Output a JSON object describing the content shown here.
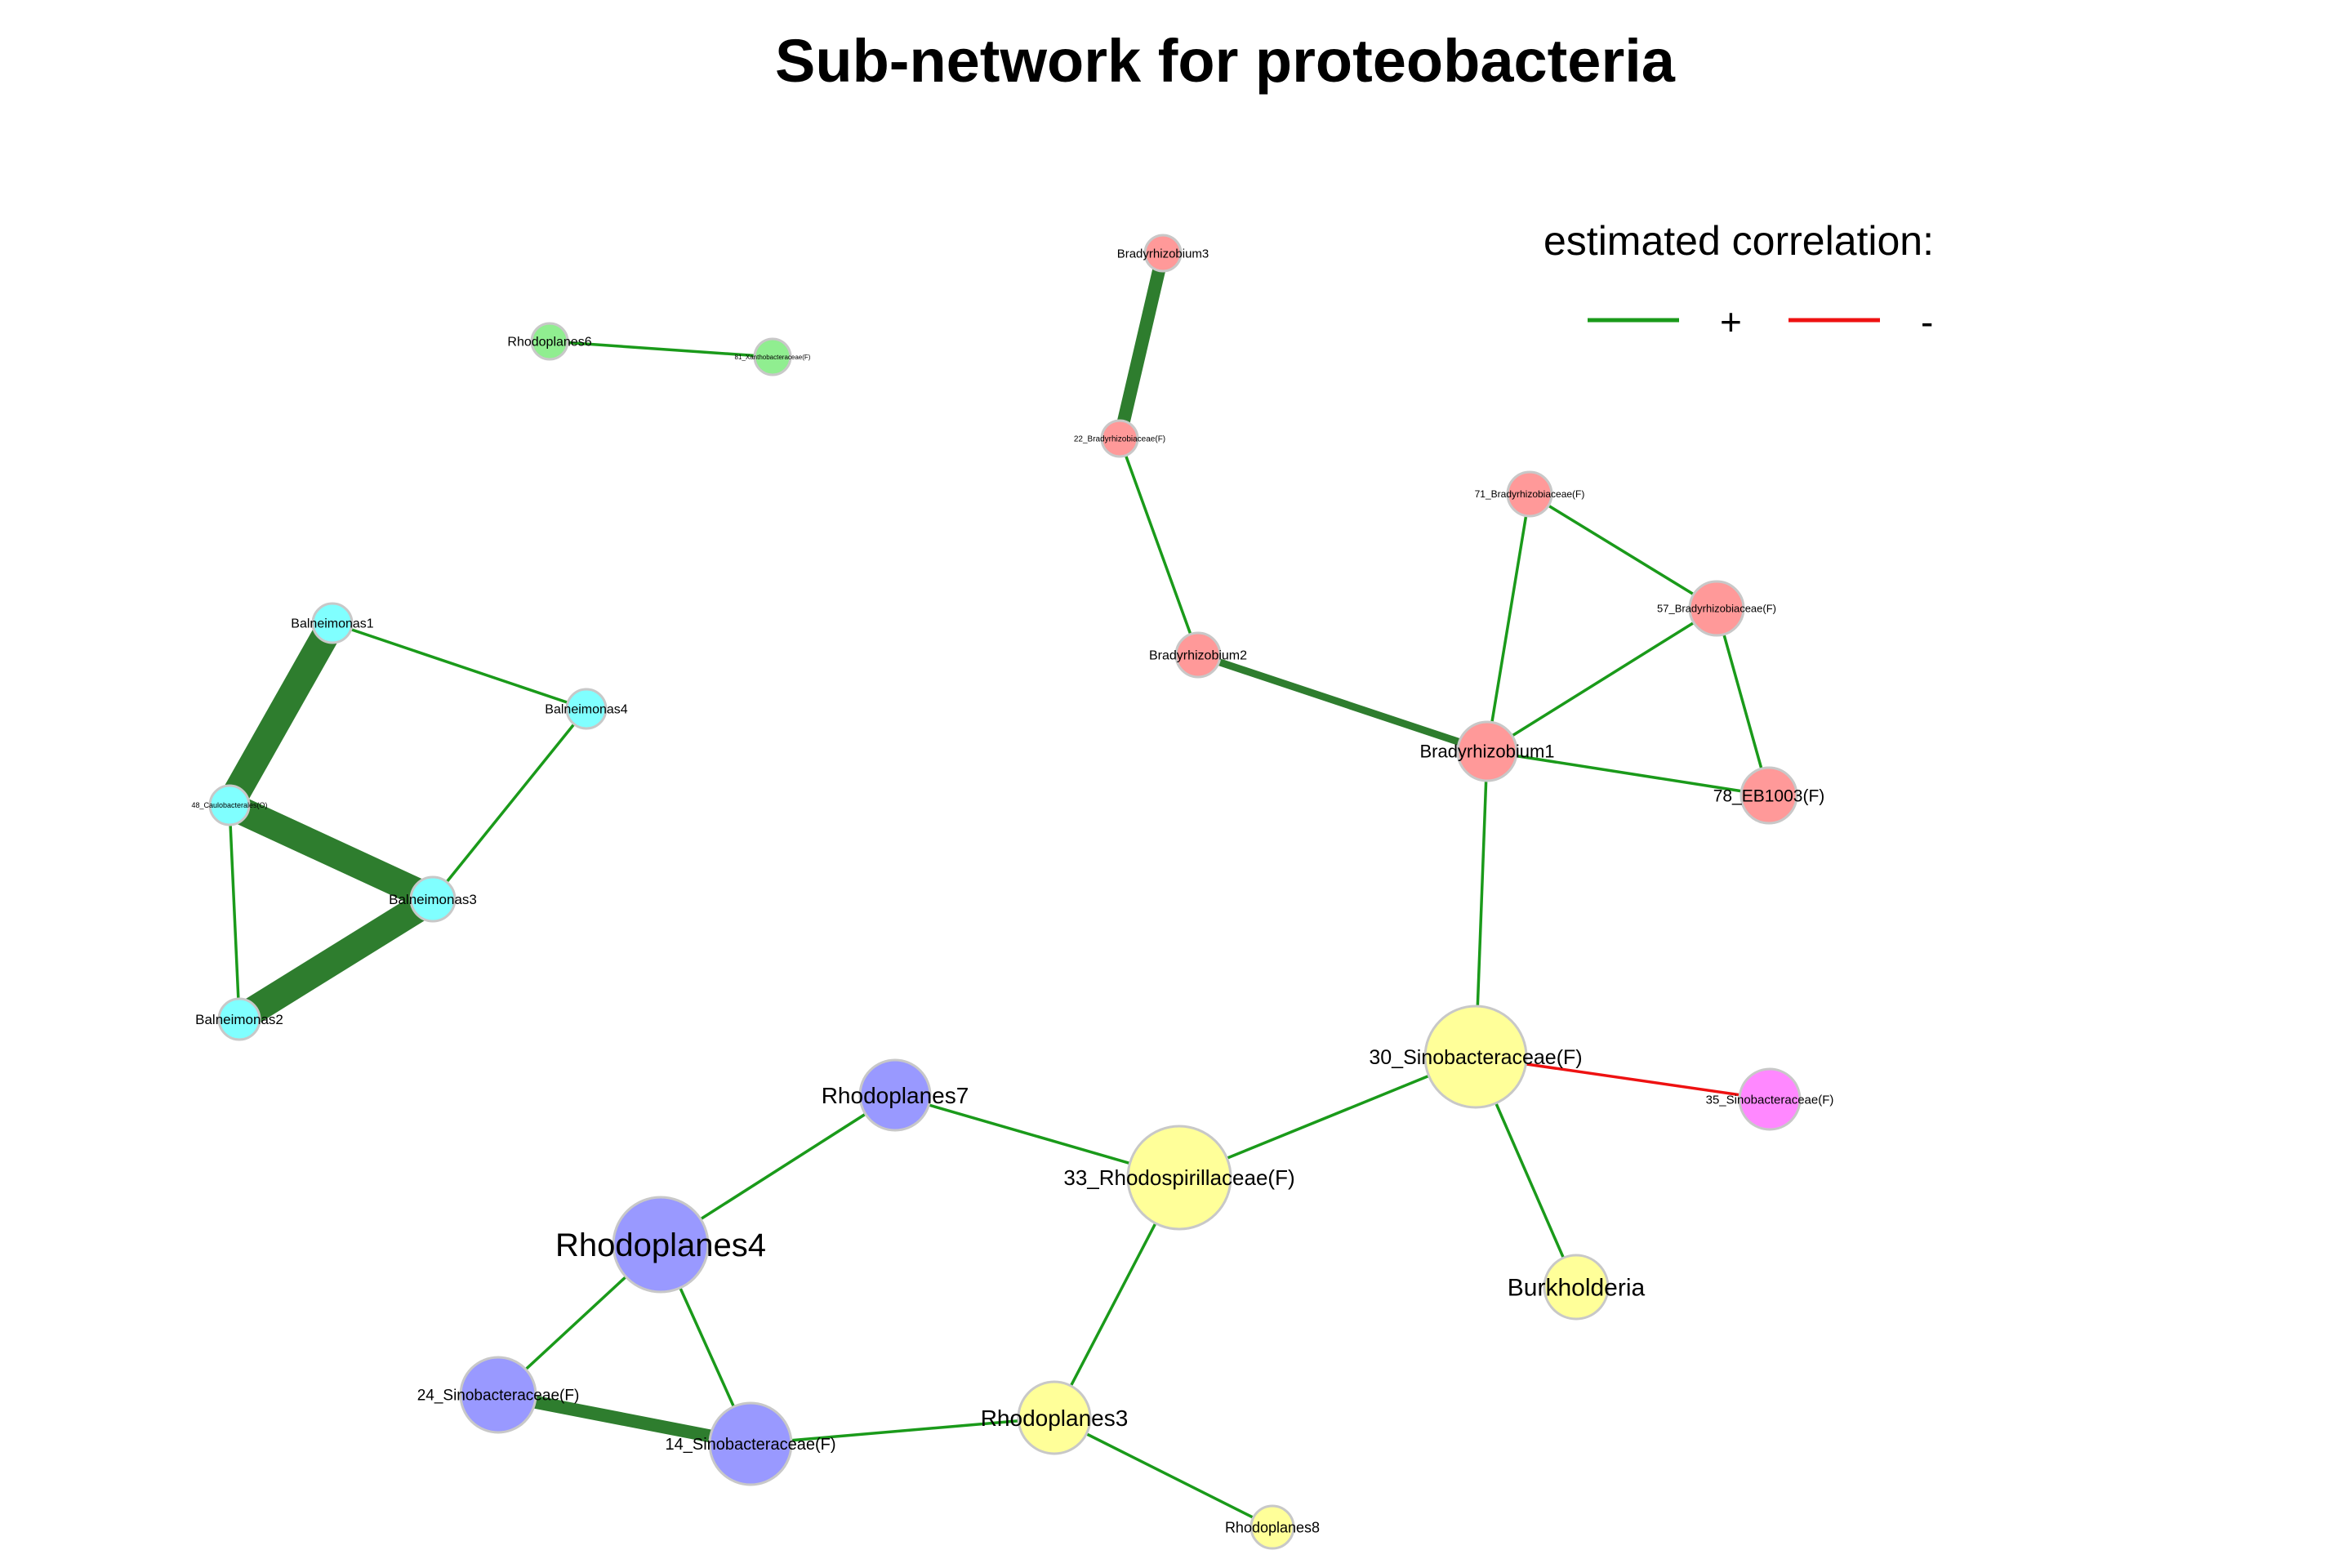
{
  "title": "Sub-network for proteobacteria",
  "legend": {
    "title": "estimated correlation:",
    "items": [
      {
        "symbol": "+",
        "color": "#1a9a1a"
      },
      {
        "symbol": "-",
        "color": "#ee1111"
      }
    ]
  },
  "colors": {
    "node_stroke": "#c8c8c8",
    "edge_positive": "#1a9a1a",
    "edge_positive_strong": "#2e7d2e",
    "edge_negative": "#ee1111"
  },
  "nodes": [
    {
      "id": "rhodoplanes6",
      "label": "Rhodoplanes6",
      "color": "#90ee90"
    },
    {
      "id": "n81",
      "label": "81_Xanthobacteraceae(F)",
      "color": "#90ee90"
    },
    {
      "id": "bradyrhizobium3",
      "label": "Bradyrhizobium3",
      "color": "#ff9999"
    },
    {
      "id": "n22",
      "label": "22_Bradyrhizobiaceae(F)",
      "color": "#ff9999"
    },
    {
      "id": "n71",
      "label": "71_Bradyrhizobiaceae(F)",
      "color": "#ff9999"
    },
    {
      "id": "n57",
      "label": "57_Bradyrhizobiaceae(F)",
      "color": "#ff9999"
    },
    {
      "id": "bradyrhizobium2",
      "label": "Bradyrhizobium2",
      "color": "#ff9999"
    },
    {
      "id": "bradyrhizobium1",
      "label": "Bradyrhizobium1",
      "color": "#ff9999"
    },
    {
      "id": "n78",
      "label": "78_EB1003(F)",
      "color": "#ff9999"
    },
    {
      "id": "balneimonas1",
      "label": "Balneimonas1",
      "color": "#80ffff"
    },
    {
      "id": "balneimonas4",
      "label": "Balneimonas4",
      "color": "#80ffff"
    },
    {
      "id": "n48",
      "label": "48_Caulobacterales(O)",
      "color": "#80ffff"
    },
    {
      "id": "balneimonas3",
      "label": "Balneimonas3",
      "color": "#80ffff"
    },
    {
      "id": "balneimonas2",
      "label": "Balneimonas2",
      "color": "#80ffff"
    },
    {
      "id": "n30",
      "label": "30_Sinobacteraceae(F)",
      "color": "#ffff99"
    },
    {
      "id": "n35",
      "label": "35_Sinobacteraceae(F)",
      "color": "#ff88ff"
    },
    {
      "id": "rhodoplanes7",
      "label": "Rhodoplanes7",
      "color": "#9999ff"
    },
    {
      "id": "n33",
      "label": "33_Rhodospirillaceae(F)",
      "color": "#ffff99"
    },
    {
      "id": "rhodoplanes4",
      "label": "Rhodoplanes4",
      "color": "#9999ff"
    },
    {
      "id": "burkholderia",
      "label": "Burkholderia",
      "color": "#ffff99"
    },
    {
      "id": "n24",
      "label": "24_Sinobacteraceae(F)",
      "color": "#9999ff"
    },
    {
      "id": "n14",
      "label": "14_Sinobacteraceae(F)",
      "color": "#9999ff"
    },
    {
      "id": "rhodoplanes3",
      "label": "Rhodoplanes3",
      "color": "#ffff99"
    },
    {
      "id": "rhodoplanes8",
      "label": "Rhodoplanes8",
      "color": "#ffff99"
    }
  ],
  "edges": [
    {
      "source": "rhodoplanes6",
      "target": "n81",
      "sign": "+",
      "strength": "weak"
    },
    {
      "source": "bradyrhizobium3",
      "target": "n22",
      "sign": "+",
      "strength": "strong"
    },
    {
      "source": "n22",
      "target": "bradyrhizobium2",
      "sign": "+",
      "strength": "weak"
    },
    {
      "source": "bradyrhizobium2",
      "target": "bradyrhizobium1",
      "sign": "+",
      "strength": "medium"
    },
    {
      "source": "n71",
      "target": "n57",
      "sign": "+",
      "strength": "weak"
    },
    {
      "source": "n71",
      "target": "bradyrhizobium1",
      "sign": "+",
      "strength": "weak"
    },
    {
      "source": "n57",
      "target": "bradyrhizobium1",
      "sign": "+",
      "strength": "weak"
    },
    {
      "source": "n57",
      "target": "n78",
      "sign": "+",
      "strength": "weak"
    },
    {
      "source": "bradyrhizobium1",
      "target": "n78",
      "sign": "+",
      "strength": "weak"
    },
    {
      "source": "bradyrhizobium1",
      "target": "n30",
      "sign": "+",
      "strength": "weak"
    },
    {
      "source": "balneimonas1",
      "target": "balneimonas4",
      "sign": "+",
      "strength": "weak"
    },
    {
      "source": "balneimonas1",
      "target": "n48",
      "sign": "+",
      "strength": "very-strong"
    },
    {
      "source": "n48",
      "target": "balneimonas3",
      "sign": "+",
      "strength": "very-strong"
    },
    {
      "source": "n48",
      "target": "balneimonas2",
      "sign": "+",
      "strength": "weak"
    },
    {
      "source": "balneimonas4",
      "target": "balneimonas3",
      "sign": "+",
      "strength": "weak"
    },
    {
      "source": "balneimonas3",
      "target": "balneimonas2",
      "sign": "+",
      "strength": "very-strong"
    },
    {
      "source": "n30",
      "target": "n35",
      "sign": "-",
      "strength": "weak"
    },
    {
      "source": "n30",
      "target": "n33",
      "sign": "+",
      "strength": "weak"
    },
    {
      "source": "n30",
      "target": "burkholderia",
      "sign": "+",
      "strength": "weak"
    },
    {
      "source": "rhodoplanes7",
      "target": "n33",
      "sign": "+",
      "strength": "weak"
    },
    {
      "source": "rhodoplanes7",
      "target": "rhodoplanes4",
      "sign": "+",
      "strength": "weak"
    },
    {
      "source": "rhodoplanes4",
      "target": "n24",
      "sign": "+",
      "strength": "weak"
    },
    {
      "source": "rhodoplanes4",
      "target": "n14",
      "sign": "+",
      "strength": "weak"
    },
    {
      "source": "n24",
      "target": "n14",
      "sign": "+",
      "strength": "strong"
    },
    {
      "source": "n33",
      "target": "rhodoplanes3",
      "sign": "+",
      "strength": "weak"
    },
    {
      "source": "n14",
      "target": "rhodoplanes3",
      "sign": "+",
      "strength": "weak"
    },
    {
      "source": "rhodoplanes3",
      "target": "rhodoplanes8",
      "sign": "+",
      "strength": "weak"
    }
  ]
}
